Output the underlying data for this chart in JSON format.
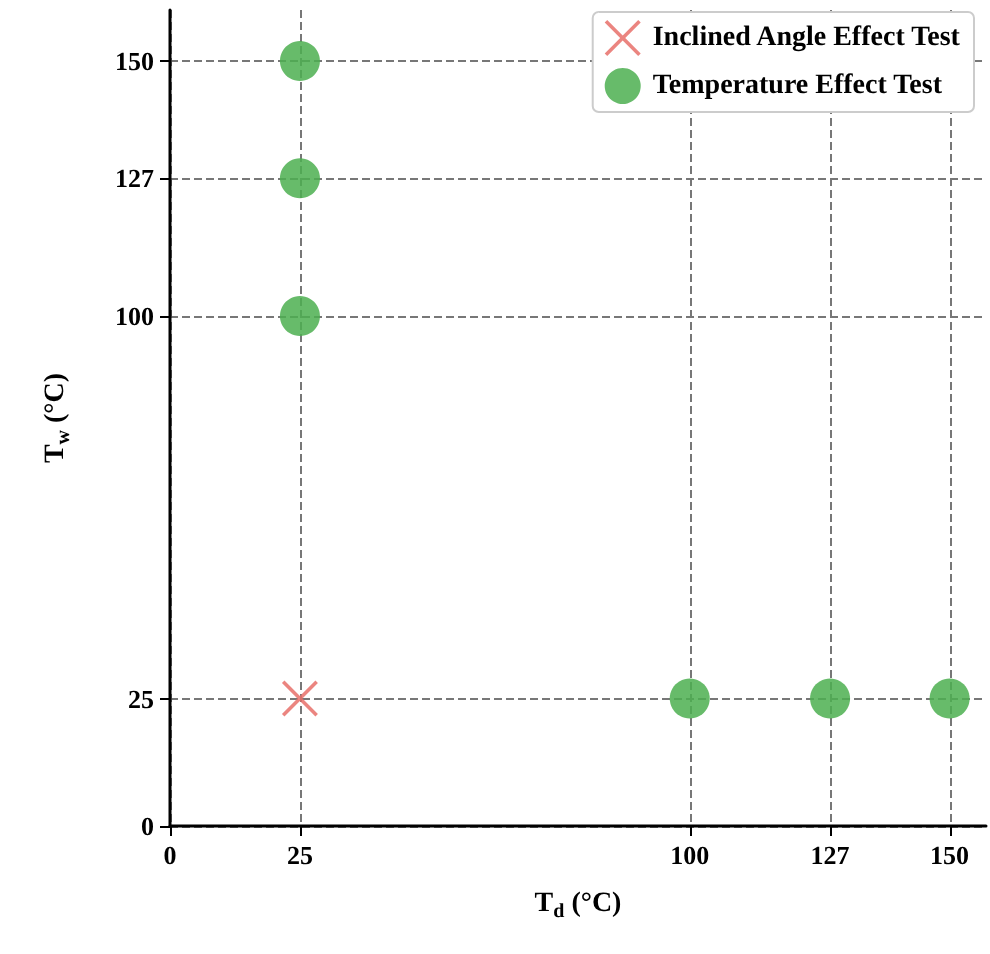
{
  "chart_data": {
    "type": "scatter",
    "xlabel": "T$_{d}$ (°C)",
    "ylabel": "T$_{w}$ (°C)",
    "series": [
      {
        "name": "Inclined Angle Effect Test",
        "color": "#e8706a",
        "marker": "cross",
        "x": [
          25
        ],
        "values": [
          25
        ]
      },
      {
        "name": "Temperature Effect Test",
        "color": "#4caf50",
        "marker": "circle",
        "x": [
          25,
          25,
          25,
          100,
          127,
          150
        ],
        "values": [
          100,
          127,
          150,
          25,
          25,
          25
        ]
      }
    ],
    "xlim": [
      0,
      157
    ],
    "xticks": [
      0,
      25,
      100,
      127,
      150
    ],
    "ylim": [
      0,
      160
    ],
    "yticks": [
      0,
      25,
      100,
      127,
      150
    ],
    "grid": true,
    "legend": "top right"
  }
}
